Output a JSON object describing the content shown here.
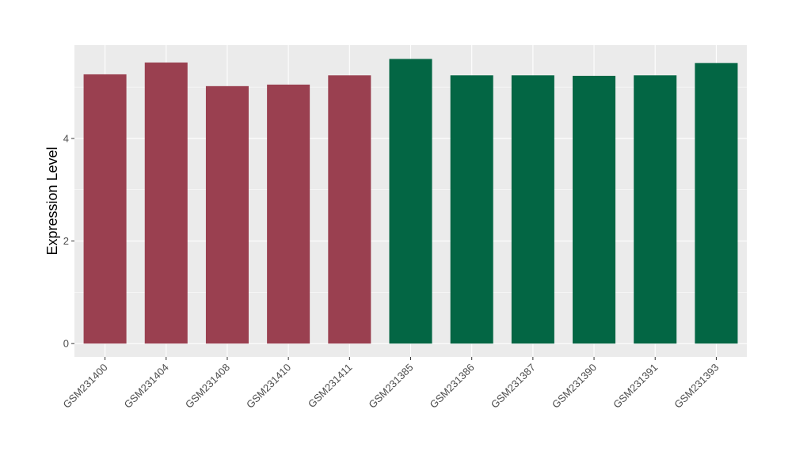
{
  "chart_data": {
    "type": "bar",
    "title": "",
    "xlabel": "",
    "ylabel": "Expression Level",
    "ylim": [
      -0.26,
      5.82
    ],
    "y_ticks": [
      0,
      2,
      4
    ],
    "grid": true,
    "legend": "none",
    "categories": [
      "GSM231400",
      "GSM231404",
      "GSM231408",
      "GSM231410",
      "GSM231411",
      "GSM231385",
      "GSM231386",
      "GSM231387",
      "GSM231390",
      "GSM231391",
      "GSM231393"
    ],
    "values": [
      5.25,
      5.48,
      5.02,
      5.05,
      5.23,
      5.55,
      5.23,
      5.23,
      5.22,
      5.23,
      5.47
    ],
    "bar_colors": [
      "#9a4050",
      "#9a4050",
      "#9a4050",
      "#9a4050",
      "#9a4050",
      "#036644",
      "#036644",
      "#036644",
      "#036644",
      "#036644",
      "#036644"
    ],
    "panel_background": "#ebebeb",
    "grid_color": "#ffffff"
  }
}
